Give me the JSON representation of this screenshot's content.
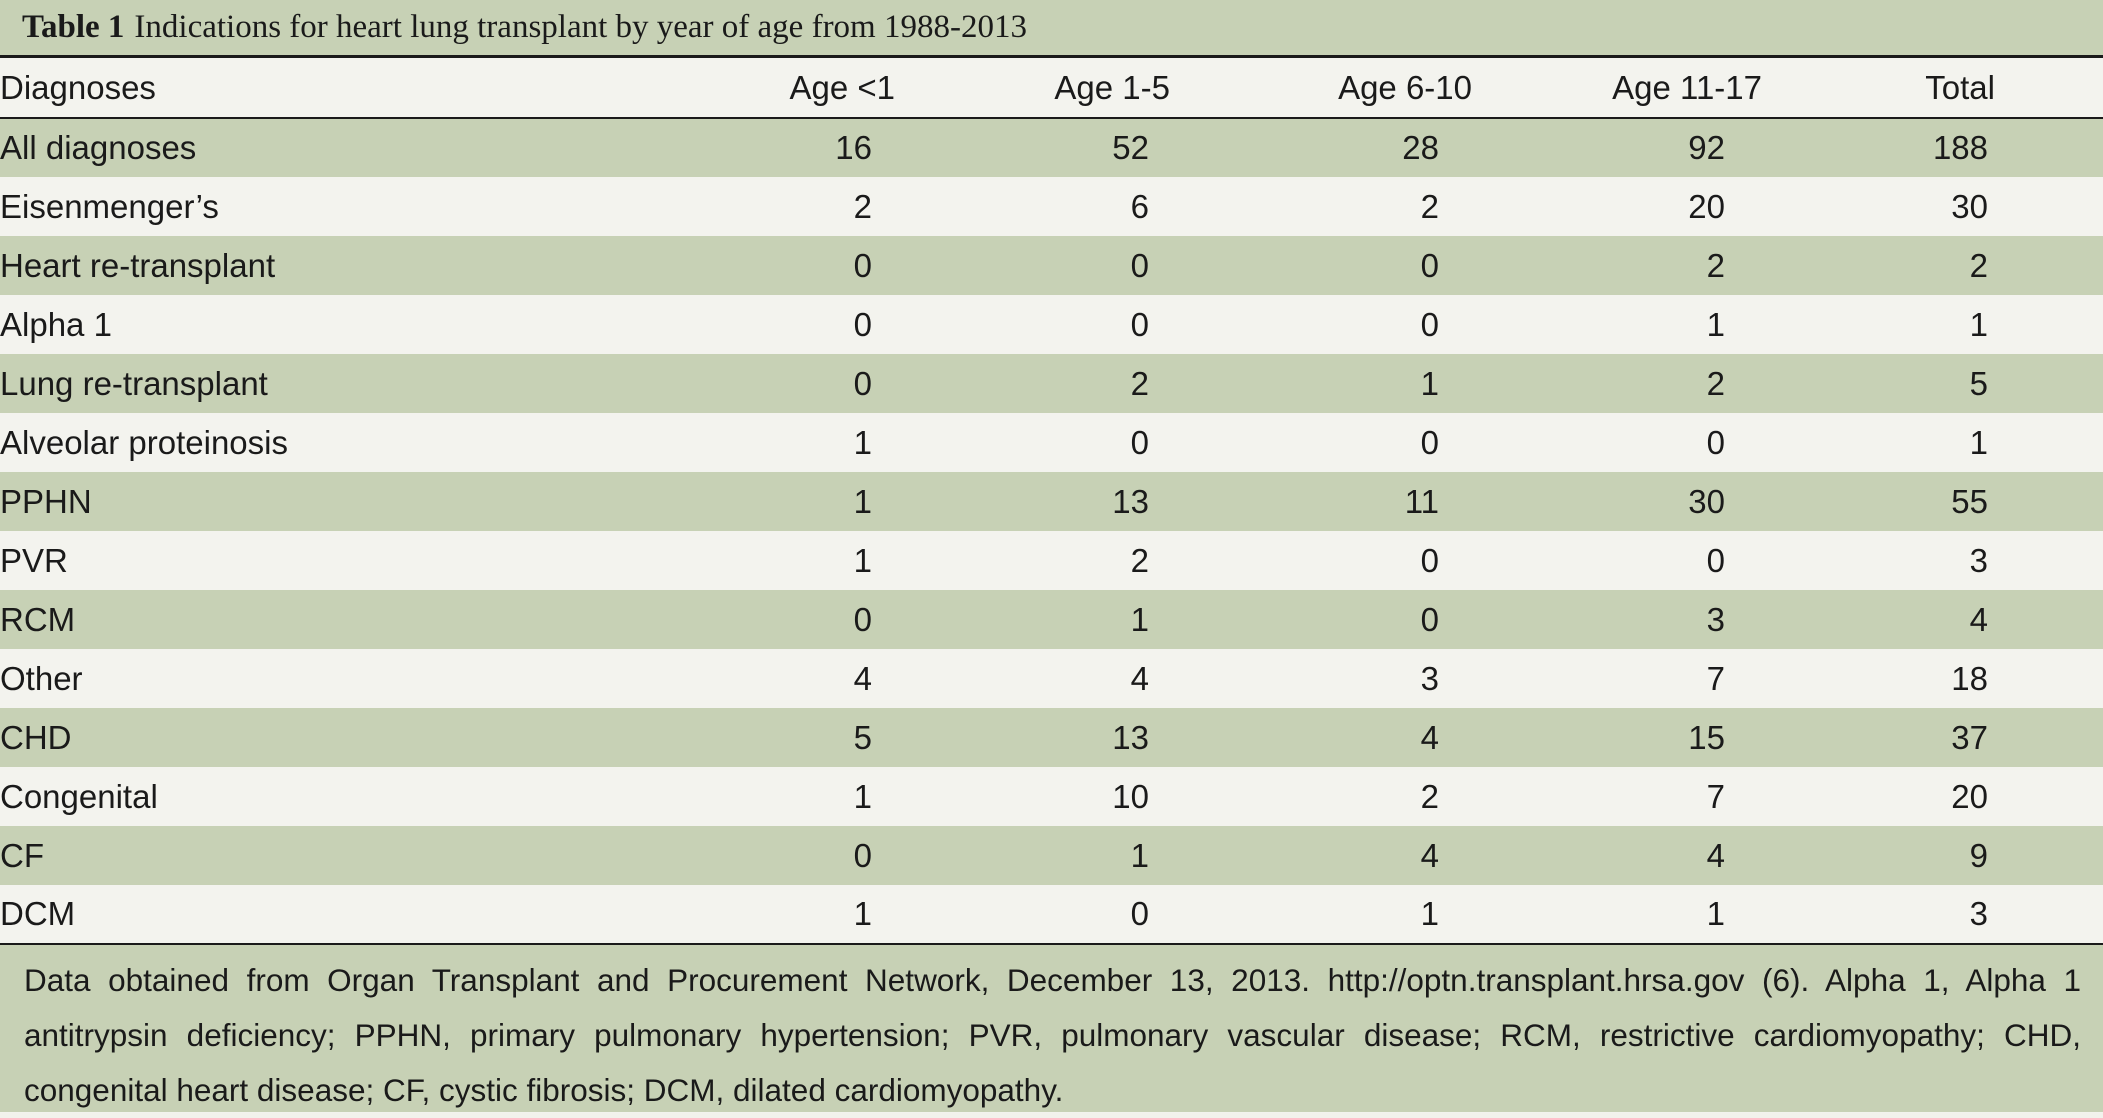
{
  "caption": {
    "label": "Table 1",
    "text": "Indications for heart lung transplant by year of age from 1988-2013"
  },
  "headers": [
    "Diagnoses",
    "Age <1",
    "Age 1-5",
    "Age 6-10",
    "Age 11-17",
    "Total"
  ],
  "rows": [
    {
      "diagnosis": "All diagnoses",
      "values": [
        "16",
        "52",
        "28",
        "92",
        "188"
      ]
    },
    {
      "diagnosis": "Eisenmenger’s",
      "values": [
        "2",
        "6",
        "2",
        "20",
        "30"
      ]
    },
    {
      "diagnosis": "Heart re-transplant",
      "values": [
        "0",
        "0",
        "0",
        "2",
        "2"
      ]
    },
    {
      "diagnosis": "Alpha 1",
      "values": [
        "0",
        "0",
        "0",
        "1",
        "1"
      ]
    },
    {
      "diagnosis": "Lung re-transplant",
      "values": [
        "0",
        "2",
        "1",
        "2",
        "5"
      ]
    },
    {
      "diagnosis": "Alveolar proteinosis",
      "values": [
        "1",
        "0",
        "0",
        "0",
        "1"
      ]
    },
    {
      "diagnosis": "PPHN",
      "values": [
        "1",
        "13",
        "11",
        "30",
        "55"
      ]
    },
    {
      "diagnosis": "PVR",
      "values": [
        "1",
        "2",
        "0",
        "0",
        "3"
      ]
    },
    {
      "diagnosis": "RCM",
      "values": [
        "0",
        "1",
        "0",
        "3",
        "4"
      ]
    },
    {
      "diagnosis": "Other",
      "values": [
        "4",
        "4",
        "3",
        "7",
        "18"
      ]
    },
    {
      "diagnosis": "CHD",
      "values": [
        "5",
        "13",
        "4",
        "15",
        "37"
      ]
    },
    {
      "diagnosis": "Congenital",
      "values": [
        "1",
        "10",
        "2",
        "7",
        "20"
      ]
    },
    {
      "diagnosis": "CF",
      "values": [
        "0",
        "1",
        "4",
        "4",
        "9"
      ]
    },
    {
      "diagnosis": "DCM",
      "values": [
        "1",
        "0",
        "1",
        "1",
        "3"
      ]
    }
  ],
  "footnote": "Data obtained from Organ Transplant and Procurement Network, December 13, 2013. http://optn.transplant.hrsa.gov (6). Alpha 1, Alpha 1 antitrypsin deficiency; PPHN, primary pulmonary hypertension; PVR, pulmonary vascular disease; RCM, restrictive cardiomyopathy; CHD, congenital heart disease; CF, cystic fibrosis; DCM, dilated cardiomyopathy.",
  "colors": {
    "band": "#c7d1b5",
    "light": "#f3f3ee",
    "rule": "#1a1a1a"
  }
}
